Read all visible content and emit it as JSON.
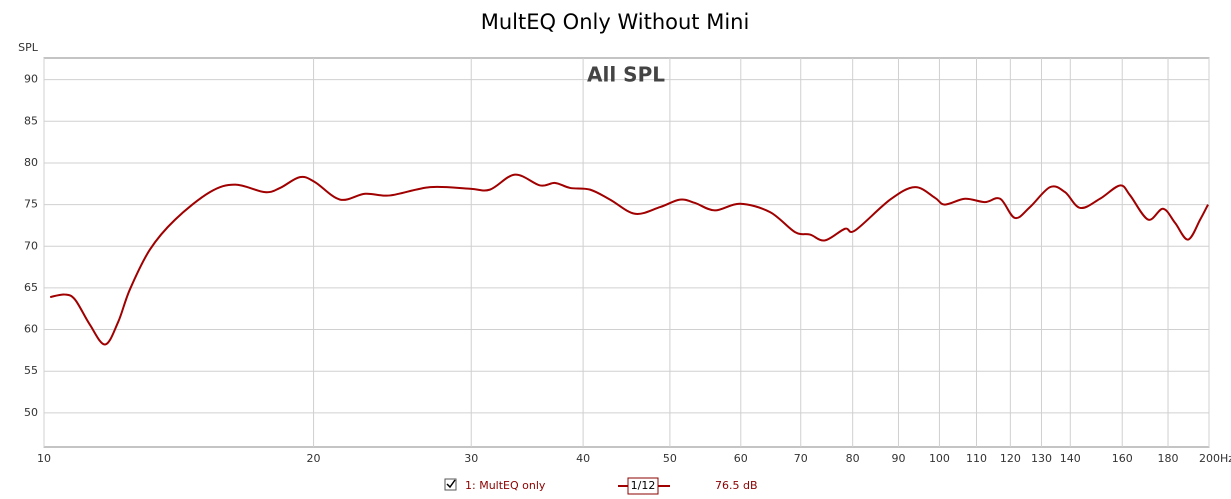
{
  "chart_data": {
    "type": "line",
    "title": "MultEQ Only Without Mini",
    "annotation": "All SPL",
    "y_label": "SPL",
    "log_x": true,
    "grid": true,
    "xlim": [
      10,
      200
    ],
    "ylim": [
      45.9,
      92.6
    ],
    "xticks": [
      10,
      20,
      30,
      40,
      50,
      60,
      70,
      80,
      90,
      100,
      110,
      120,
      130,
      140,
      160,
      180,
      {
        "value": 200,
        "label": "200Hz"
      }
    ],
    "yticks": [
      50,
      55,
      60,
      65,
      70,
      75,
      80,
      85,
      90
    ],
    "x": [
      10.16,
      10.55,
      10.83,
      11.25,
      11.7,
      12.1,
      12.47,
      13.13,
      14.01,
      15.32,
      16.35,
      17.65,
      18.35,
      19.31,
      20.07,
      21.41,
      22.84,
      24.35,
      26.99,
      29.91,
      31.48,
      33.57,
      35.81,
      37.22,
      38.68,
      40.72,
      42.87,
      45.71,
      48.75,
      51.31,
      53.33,
      56.14,
      59.87,
      64.69,
      68.98,
      71.69,
      74.51,
      78.44,
      80.5,
      88.1,
      93.9,
      98.9,
      101.4,
      106.8,
      112.4,
      116.9,
      121.4,
      126.2,
      132.9,
      138.1,
      143.6,
      151.1,
      159.1,
      163.3,
      171.0,
      177.7,
      183.3,
      189.5,
      195.5,
      199.5
    ],
    "series": [
      {
        "name": "1: MultEQ only",
        "color": "#a00000",
        "values": [
          63.9,
          64.2,
          63.6,
          60.6,
          58.2,
          60.9,
          64.8,
          69.6,
          73.2,
          76.5,
          77.4,
          76.5,
          77.0,
          78.3,
          77.7,
          75.6,
          76.3,
          76.1,
          77.1,
          76.9,
          76.8,
          78.6,
          77.3,
          77.6,
          77.0,
          76.8,
          75.6,
          73.9,
          74.7,
          75.6,
          75.2,
          74.3,
          75.1,
          74.1,
          71.7,
          71.4,
          70.7,
          72.1,
          71.9,
          75.6,
          77.1,
          75.8,
          75.0,
          75.7,
          75.3,
          75.7,
          73.4,
          74.7,
          77.1,
          76.5,
          74.6,
          75.7,
          77.3,
          76.1,
          73.2,
          74.5,
          72.8,
          70.8,
          73.2,
          75.0
        ]
      }
    ],
    "legend": {
      "smoothing": "1/12",
      "level": "76.5 dB"
    }
  }
}
